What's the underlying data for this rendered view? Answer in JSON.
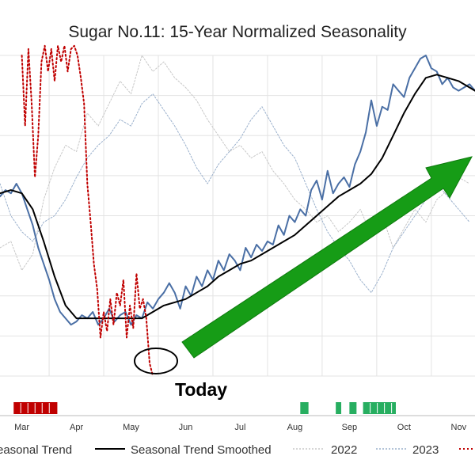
{
  "chart_data": {
    "type": "line",
    "title": "Sugar No.11: 15-Year Normalized Seasonality",
    "x_tick_labels": [
      "Mar",
      "Apr",
      "May",
      "Jun",
      "Jul",
      "Aug",
      "Sep",
      "Oct",
      "Nov"
    ],
    "x_month_positions": [
      2.0,
      3.0,
      4.0,
      5.0,
      6.0,
      7.0,
      8.0,
      9.0,
      10.0
    ],
    "x_range": [
      1.6,
      10.3
    ],
    "y_range": [
      0,
      1
    ],
    "grid": true,
    "legend_position": "bottom",
    "series": [
      {
        "name": "Seasonal Trend",
        "color": "#4a6fa5",
        "x": [
          1.6,
          1.7,
          1.8,
          1.9,
          2.0,
          2.1,
          2.2,
          2.3,
          2.4,
          2.5,
          2.6,
          2.7,
          2.8,
          2.9,
          3.0,
          3.1,
          3.2,
          3.3,
          3.4,
          3.5,
          3.6,
          3.7,
          3.8,
          3.9,
          4.0,
          4.1,
          4.2,
          4.3,
          4.4,
          4.5,
          4.6,
          4.7,
          4.8,
          4.9,
          5.0,
          5.1,
          5.2,
          5.3,
          5.4,
          5.5,
          5.6,
          5.7,
          5.8,
          5.9,
          6.0,
          6.1,
          6.2,
          6.3,
          6.4,
          6.5,
          6.6,
          6.7,
          6.8,
          6.9,
          7.0,
          7.1,
          7.2,
          7.3,
          7.4,
          7.5,
          7.6,
          7.7,
          7.8,
          7.9,
          8.0,
          8.1,
          8.2,
          8.3,
          8.4,
          8.5,
          8.6,
          8.7,
          8.8,
          8.9,
          9.0,
          9.1,
          9.2,
          9.3,
          9.4,
          9.5,
          9.6,
          9.7,
          9.8,
          9.9,
          10.0,
          10.1,
          10.2,
          10.3
        ],
        "values": [
          0.56,
          0.58,
          0.57,
          0.6,
          0.57,
          0.52,
          0.47,
          0.4,
          0.35,
          0.3,
          0.24,
          0.2,
          0.18,
          0.16,
          0.17,
          0.19,
          0.18,
          0.2,
          0.16,
          0.18,
          0.21,
          0.17,
          0.19,
          0.2,
          0.16,
          0.19,
          0.18,
          0.23,
          0.21,
          0.24,
          0.26,
          0.29,
          0.26,
          0.21,
          0.28,
          0.25,
          0.31,
          0.28,
          0.33,
          0.3,
          0.36,
          0.33,
          0.38,
          0.36,
          0.33,
          0.4,
          0.37,
          0.41,
          0.39,
          0.42,
          0.41,
          0.47,
          0.44,
          0.5,
          0.48,
          0.52,
          0.5,
          0.58,
          0.61,
          0.55,
          0.64,
          0.57,
          0.6,
          0.62,
          0.59,
          0.66,
          0.7,
          0.76,
          0.86,
          0.78,
          0.84,
          0.83,
          0.91,
          0.89,
          0.87,
          0.93,
          0.96,
          0.99,
          1.0,
          0.96,
          0.95,
          0.91,
          0.93,
          0.9,
          0.89,
          0.9,
          0.91,
          0.89
        ]
      },
      {
        "name": "Seasonal Trend Smoothed",
        "color": "#000000",
        "x": [
          1.6,
          1.8,
          2.0,
          2.2,
          2.4,
          2.6,
          2.8,
          3.0,
          3.2,
          3.4,
          3.6,
          3.8,
          4.0,
          4.2,
          4.4,
          4.6,
          4.8,
          5.0,
          5.2,
          5.4,
          5.6,
          5.8,
          6.0,
          6.2,
          6.4,
          6.6,
          6.8,
          7.0,
          7.2,
          7.4,
          7.6,
          7.8,
          8.0,
          8.2,
          8.4,
          8.6,
          8.8,
          9.0,
          9.2,
          9.4,
          9.6,
          9.8,
          10.0,
          10.2,
          10.3
        ],
        "values": [
          0.57,
          0.58,
          0.57,
          0.52,
          0.42,
          0.31,
          0.22,
          0.18,
          0.18,
          0.18,
          0.18,
          0.18,
          0.18,
          0.18,
          0.2,
          0.22,
          0.23,
          0.24,
          0.26,
          0.28,
          0.31,
          0.33,
          0.35,
          0.36,
          0.38,
          0.4,
          0.42,
          0.44,
          0.47,
          0.5,
          0.53,
          0.56,
          0.58,
          0.6,
          0.63,
          0.68,
          0.75,
          0.82,
          0.88,
          0.93,
          0.94,
          0.93,
          0.92,
          0.9,
          0.89
        ]
      },
      {
        "name": "2022",
        "color": "#c8c8c8",
        "x": [
          1.6,
          1.8,
          2.0,
          2.2,
          2.4,
          2.6,
          2.8,
          3.0,
          3.2,
          3.4,
          3.6,
          3.8,
          4.0,
          4.2,
          4.4,
          4.6,
          4.8,
          5.0,
          5.2,
          5.4,
          5.6,
          5.8,
          6.0,
          6.2,
          6.4,
          6.6,
          6.8,
          7.0,
          7.2,
          7.4,
          7.6,
          7.8,
          8.0,
          8.2,
          8.4,
          8.6,
          8.8,
          9.0,
          9.2,
          9.4,
          9.6,
          9.8,
          10.0,
          10.2
        ],
        "values": [
          0.4,
          0.42,
          0.33,
          0.38,
          0.55,
          0.65,
          0.72,
          0.7,
          0.82,
          0.78,
          0.85,
          0.92,
          0.88,
          1.0,
          0.95,
          0.98,
          0.93,
          0.9,
          0.86,
          0.8,
          0.75,
          0.7,
          0.72,
          0.68,
          0.7,
          0.64,
          0.6,
          0.55,
          0.52,
          0.48,
          0.5,
          0.45,
          0.48,
          0.52,
          0.44,
          0.5,
          0.4,
          0.46,
          0.52,
          0.48,
          0.55,
          0.58,
          0.62,
          0.6
        ]
      },
      {
        "name": "2023",
        "color": "#9ab0cc",
        "x": [
          1.6,
          1.8,
          2.0,
          2.2,
          2.4,
          2.6,
          2.8,
          3.0,
          3.2,
          3.4,
          3.6,
          3.8,
          4.0,
          4.2,
          4.4,
          4.6,
          4.8,
          5.0,
          5.2,
          5.4,
          5.6,
          5.8,
          6.0,
          6.2,
          6.4,
          6.6,
          6.8,
          7.0,
          7.2,
          7.4,
          7.6,
          7.8,
          8.0,
          8.2,
          8.4,
          8.6,
          8.8,
          9.0,
          9.2,
          9.4,
          9.6,
          9.8,
          10.0,
          10.2
        ],
        "values": [
          0.6,
          0.5,
          0.45,
          0.42,
          0.48,
          0.5,
          0.55,
          0.62,
          0.68,
          0.72,
          0.75,
          0.8,
          0.78,
          0.85,
          0.88,
          0.83,
          0.78,
          0.72,
          0.65,
          0.6,
          0.66,
          0.7,
          0.74,
          0.8,
          0.84,
          0.78,
          0.72,
          0.68,
          0.6,
          0.52,
          0.45,
          0.4,
          0.36,
          0.3,
          0.26,
          0.32,
          0.4,
          0.45,
          0.5,
          0.55,
          0.6,
          0.56,
          0.52,
          0.48
        ]
      },
      {
        "name": "",
        "color": "#c00000",
        "x": [
          2.0,
          2.06,
          2.12,
          2.18,
          2.24,
          2.3,
          2.36,
          2.42,
          2.48,
          2.54,
          2.6,
          2.66,
          2.72,
          2.78,
          2.84,
          2.9,
          2.96,
          3.02,
          3.08,
          3.14,
          3.2,
          3.26,
          3.32,
          3.38,
          3.44,
          3.5,
          3.56,
          3.62,
          3.68,
          3.74,
          3.8,
          3.86,
          3.92,
          3.98,
          4.04,
          4.1,
          4.16,
          4.22,
          4.28,
          4.34,
          4.4
        ],
        "values": [
          1.0,
          0.78,
          1.02,
          0.85,
          0.62,
          0.75,
          0.98,
          1.03,
          0.95,
          1.02,
          0.92,
          1.03,
          0.98,
          1.03,
          0.95,
          1.02,
          1.03,
          1.0,
          0.93,
          0.85,
          0.6,
          0.48,
          0.35,
          0.27,
          0.12,
          0.2,
          0.14,
          0.24,
          0.16,
          0.26,
          0.22,
          0.3,
          0.12,
          0.22,
          0.15,
          0.32,
          0.21,
          0.24,
          0.18,
          0.04,
          0.0
        ]
      }
    ],
    "shaded_period_markers": [
      {
        "color": "#c00000",
        "x_start": 1.85,
        "x_end": 2.65
      },
      {
        "color": "#27ae60",
        "x_start": 7.1,
        "x_end": 7.25
      },
      {
        "color": "#27ae60",
        "x_start": 7.75,
        "x_end": 7.85
      },
      {
        "color": "#27ae60",
        "x_start": 8.0,
        "x_end": 8.13
      },
      {
        "color": "#27ae60",
        "x_start": 8.25,
        "x_end": 8.85
      }
    ],
    "annotations": [
      {
        "text": "Today",
        "type": "label"
      },
      {
        "type": "circle",
        "color": "#000000"
      },
      {
        "type": "arrow",
        "color": "#169c16"
      }
    ]
  },
  "legend": {
    "items": [
      "easonal Trend",
      "Seasonal Trend Smoothed",
      "2022",
      "2023",
      ""
    ]
  }
}
